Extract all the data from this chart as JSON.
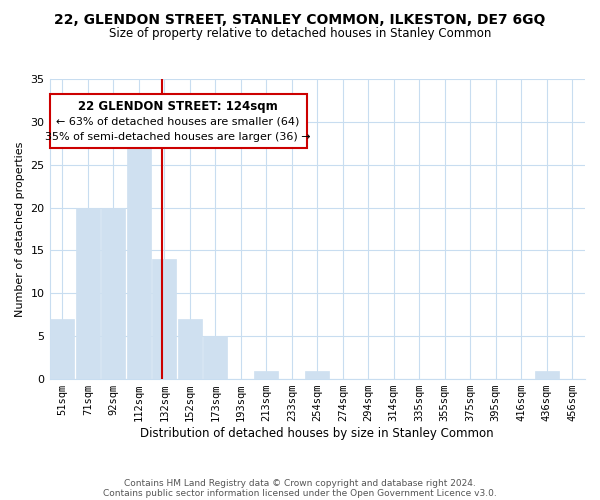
{
  "title": "22, GLENDON STREET, STANLEY COMMON, ILKESTON, DE7 6GQ",
  "subtitle": "Size of property relative to detached houses in Stanley Common",
  "bar_labels": [
    "51sqm",
    "71sqm",
    "92sqm",
    "112sqm",
    "132sqm",
    "152sqm",
    "173sqm",
    "193sqm",
    "213sqm",
    "233sqm",
    "254sqm",
    "274sqm",
    "294sqm",
    "314sqm",
    "335sqm",
    "355sqm",
    "375sqm",
    "395sqm",
    "416sqm",
    "436sqm",
    "456sqm"
  ],
  "bar_values": [
    7,
    20,
    20,
    27,
    14,
    7,
    5,
    0,
    1,
    0,
    1,
    0,
    0,
    0,
    0,
    0,
    0,
    0,
    0,
    1,
    0
  ],
  "bar_color": "#cfe0f0",
  "bar_edge_color": "#cfe0f0",
  "vline_index": 4,
  "vline_color": "#cc0000",
  "ylabel": "Number of detached properties",
  "xlabel": "Distribution of detached houses by size in Stanley Common",
  "ylim": [
    0,
    35
  ],
  "yticks": [
    0,
    5,
    10,
    15,
    20,
    25,
    30,
    35
  ],
  "annotation_title": "22 GLENDON STREET: 124sqm",
  "annotation_line1": "← 63% of detached houses are smaller (64)",
  "annotation_line2": "35% of semi-detached houses are larger (36) →",
  "footer1": "Contains HM Land Registry data © Crown copyright and database right 2024.",
  "footer2": "Contains public sector information licensed under the Open Government Licence v3.0.",
  "bg_color": "#ffffff",
  "grid_color": "#c8ddf0"
}
